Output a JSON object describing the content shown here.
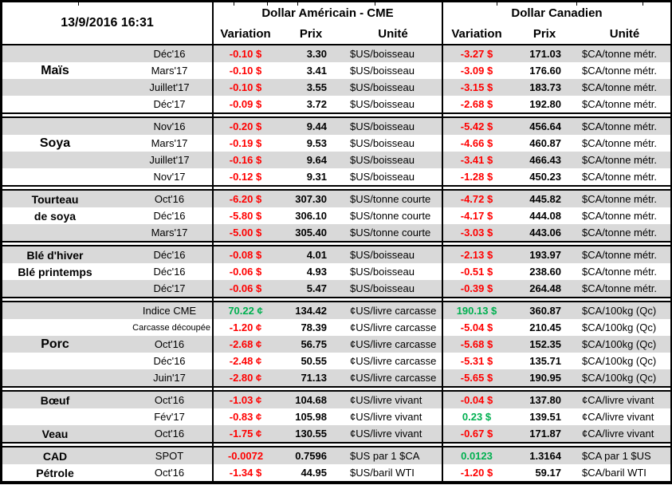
{
  "colors": {
    "negative": "#FF0000",
    "positive": "#00B050",
    "stripe": "#D9D9D9",
    "grid": "#000000"
  },
  "report": {
    "timestamp": "13/9/2016 16:31",
    "usd": {
      "title": "Dollar Américain - CME"
    },
    "cad": {
      "title": "Dollar Canadien"
    },
    "columns": {
      "variation": "Variation",
      "prix": "Prix",
      "unite": "Unité"
    },
    "sections": [
      {
        "name": "mais",
        "rows": [
          {
            "month": "Déc'16",
            "us": {
              "var": "-0.10 $",
              "trend": "down",
              "prix": "3.30",
              "unit": "$US/boisseau"
            },
            "ca": {
              "var": "-3.27 $",
              "trend": "down",
              "prix": "171.03",
              "unit": "$CA/tonne métr."
            }
          },
          {
            "label": "Maïs",
            "label_size": "lg",
            "month": "Mars'17",
            "us": {
              "var": "-0.10 $",
              "trend": "down",
              "prix": "3.41",
              "unit": "$US/boisseau"
            },
            "ca": {
              "var": "-3.09 $",
              "trend": "down",
              "prix": "176.60",
              "unit": "$CA/tonne métr."
            }
          },
          {
            "month": "Juillet'17",
            "us": {
              "var": "-0.10 $",
              "trend": "down",
              "prix": "3.55",
              "unit": "$US/boisseau"
            },
            "ca": {
              "var": "-3.15 $",
              "trend": "down",
              "prix": "183.73",
              "unit": "$CA/tonne métr."
            }
          },
          {
            "month": "Déc'17",
            "us": {
              "var": "-0.09 $",
              "trend": "down",
              "prix": "3.72",
              "unit": "$US/boisseau"
            },
            "ca": {
              "var": "-2.68 $",
              "trend": "down",
              "prix": "192.80",
              "unit": "$CA/tonne métr."
            }
          }
        ]
      },
      {
        "name": "soya",
        "rows": [
          {
            "month": "Nov'16",
            "us": {
              "var": "-0.20 $",
              "trend": "down",
              "prix": "9.44",
              "unit": "$US/boisseau"
            },
            "ca": {
              "var": "-5.42 $",
              "trend": "down",
              "prix": "456.64",
              "unit": "$CA/tonne métr."
            }
          },
          {
            "label": "Soya",
            "label_size": "lg",
            "month": "Mars'17",
            "us": {
              "var": "-0.19 $",
              "trend": "down",
              "prix": "9.53",
              "unit": "$US/boisseau"
            },
            "ca": {
              "var": "-4.66 $",
              "trend": "down",
              "prix": "460.87",
              "unit": "$CA/tonne métr."
            }
          },
          {
            "month": "Juillet'17",
            "us": {
              "var": "-0.16 $",
              "trend": "down",
              "prix": "9.64",
              "unit": "$US/boisseau"
            },
            "ca": {
              "var": "-3.41 $",
              "trend": "down",
              "prix": "466.43",
              "unit": "$CA/tonne métr."
            }
          },
          {
            "month": "Nov'17",
            "us": {
              "var": "-0.12 $",
              "trend": "down",
              "prix": "9.31",
              "unit": "$US/boisseau"
            },
            "ca": {
              "var": "-1.28 $",
              "trend": "down",
              "prix": "450.23",
              "unit": "$CA/tonne métr."
            }
          }
        ]
      },
      {
        "name": "tourteau-de-soya",
        "rows": [
          {
            "label": "Tourteau",
            "month": "Oct'16",
            "us": {
              "var": "-6.20 $",
              "trend": "down",
              "prix": "307.30",
              "unit": "$US/tonne courte"
            },
            "ca": {
              "var": "-4.72 $",
              "trend": "down",
              "prix": "445.82",
              "unit": "$CA/tonne métr."
            }
          },
          {
            "label": "de soya",
            "month": "Déc'16",
            "us": {
              "var": "-5.80 $",
              "trend": "down",
              "prix": "306.10",
              "unit": "$US/tonne courte"
            },
            "ca": {
              "var": "-4.17 $",
              "trend": "down",
              "prix": "444.08",
              "unit": "$CA/tonne métr."
            }
          },
          {
            "month": "Mars'17",
            "us": {
              "var": "-5.00 $",
              "trend": "down",
              "prix": "305.40",
              "unit": "$US/tonne courte"
            },
            "ca": {
              "var": "-3.03 $",
              "trend": "down",
              "prix": "443.06",
              "unit": "$CA/tonne métr."
            }
          }
        ]
      },
      {
        "name": "ble",
        "rows": [
          {
            "label": "Blé d'hiver",
            "month": "Déc'16",
            "us": {
              "var": "-0.08 $",
              "trend": "down",
              "prix": "4.01",
              "unit": "$US/boisseau"
            },
            "ca": {
              "var": "-2.13 $",
              "trend": "down",
              "prix": "193.97",
              "unit": "$CA/tonne métr."
            }
          },
          {
            "label": "Blé printemps",
            "month": "Déc'16",
            "us": {
              "var": "-0.06 $",
              "trend": "down",
              "prix": "4.93",
              "unit": "$US/boisseau"
            },
            "ca": {
              "var": "-0.51 $",
              "trend": "down",
              "prix": "238.60",
              "unit": "$CA/tonne métr."
            }
          },
          {
            "month": "Déc'17",
            "us": {
              "var": "-0.06 $",
              "trend": "down",
              "prix": "5.47",
              "unit": "$US/boisseau"
            },
            "ca": {
              "var": "-0.39 $",
              "trend": "down",
              "prix": "264.48",
              "unit": "$CA/tonne métr."
            }
          }
        ]
      },
      {
        "name": "porc",
        "rows": [
          {
            "month": "Indice CME",
            "us": {
              "var": "70.22 ¢",
              "trend": "up",
              "prix": "134.42",
              "unit": "¢US/livre carcasse"
            },
            "ca": {
              "var": "190.13 $",
              "trend": "up",
              "prix": "360.87",
              "unit": "$CA/100kg (Qc)"
            }
          },
          {
            "month": "Carcasse découpée",
            "month_small": true,
            "us": {
              "var": "-1.20 ¢",
              "trend": "down",
              "prix": "78.39",
              "unit": "¢US/livre carcasse"
            },
            "ca": {
              "var": "-5.04 $",
              "trend": "down",
              "prix": "210.45",
              "unit": "$CA/100kg (Qc)"
            }
          },
          {
            "label": "Porc",
            "label_size": "lg",
            "month": "Oct'16",
            "us": {
              "var": "-2.68 ¢",
              "trend": "down",
              "prix": "56.75",
              "unit": "¢US/livre carcasse"
            },
            "ca": {
              "var": "-5.68 $",
              "trend": "down",
              "prix": "152.35",
              "unit": "$CA/100kg (Qc)"
            }
          },
          {
            "month": "Déc'16",
            "us": {
              "var": "-2.48 ¢",
              "trend": "down",
              "prix": "50.55",
              "unit": "¢US/livre carcasse"
            },
            "ca": {
              "var": "-5.31 $",
              "trend": "down",
              "prix": "135.71",
              "unit": "$CA/100kg (Qc)"
            }
          },
          {
            "month": "Juin'17",
            "us": {
              "var": "-2.80 ¢",
              "trend": "down",
              "prix": "71.13",
              "unit": "¢US/livre carcasse"
            },
            "ca": {
              "var": "-5.65 $",
              "trend": "down",
              "prix": "190.95",
              "unit": "$CA/100kg (Qc)"
            }
          }
        ]
      },
      {
        "name": "boeuf-veau",
        "rows": [
          {
            "label": "Bœuf",
            "month": "Oct'16",
            "us": {
              "var": "-1.03 ¢",
              "trend": "down",
              "prix": "104.68",
              "unit": "¢US/livre vivant"
            },
            "ca": {
              "var": "-0.04 $",
              "trend": "down",
              "prix": "137.80",
              "unit": "¢CA/livre vivant"
            }
          },
          {
            "month": "Fév'17",
            "us": {
              "var": "-0.83 ¢",
              "trend": "down",
              "prix": "105.98",
              "unit": "¢US/livre vivant"
            },
            "ca": {
              "var": "0.23 $",
              "trend": "up",
              "prix": "139.51",
              "unit": "¢CA/livre vivant"
            }
          },
          {
            "label": "Veau",
            "month": "Oct'16",
            "us": {
              "var": "-1.75 ¢",
              "trend": "down",
              "prix": "130.55",
              "unit": "¢US/livre vivant"
            },
            "ca": {
              "var": "-0.67 $",
              "trend": "down",
              "prix": "171.87",
              "unit": "¢CA/livre vivant"
            }
          }
        ]
      },
      {
        "name": "cad-petrole",
        "rows": [
          {
            "label": "CAD",
            "month": "SPOT",
            "us": {
              "var": "-0.0072",
              "trend": "down",
              "prix": "0.7596",
              "unit": "$US par 1 $CA"
            },
            "ca": {
              "var": "0.0123",
              "trend": "up",
              "prix": "1.3164",
              "unit": "$CA par 1 $US"
            }
          },
          {
            "label": "Pétrole",
            "month": "Oct'16",
            "us": {
              "var": "-1.34 $",
              "trend": "down",
              "prix": "44.95",
              "unit": "$US/baril WTI"
            },
            "ca": {
              "var": "-1.20 $",
              "trend": "down",
              "prix": "59.17",
              "unit": "$CA/baril WTI"
            }
          }
        ]
      }
    ]
  }
}
